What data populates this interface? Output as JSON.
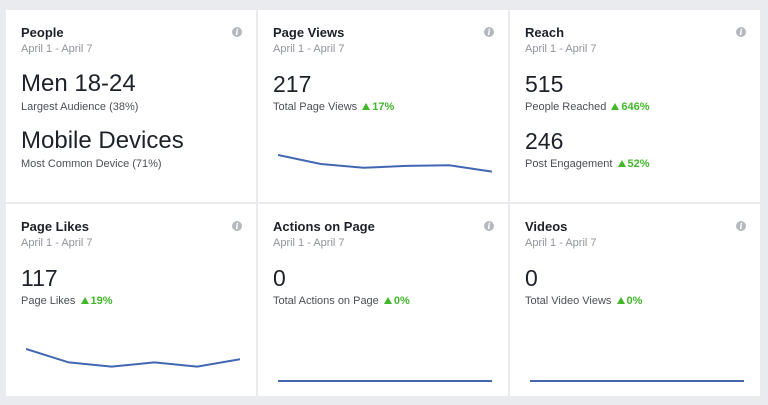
{
  "cards": [
    {
      "title": "People",
      "range": "April 1 - April 7",
      "metrics": [
        {
          "value": "Men 18-24",
          "label": "Largest Audience (38%)"
        },
        {
          "value": "Mobile Devices",
          "label": "Most Common Device (71%)"
        }
      ]
    },
    {
      "title": "Page Views",
      "range": "April 1 - April 7",
      "metrics": [
        {
          "value": "217",
          "label": "Total Page Views",
          "change": "17%"
        }
      ],
      "trend": [
        100,
        72,
        60,
        66,
        68,
        48
      ]
    },
    {
      "title": "Reach",
      "range": "April 1 - April 7",
      "metrics": [
        {
          "value": "515",
          "label": "People Reached",
          "change": "646%"
        },
        {
          "value": "246",
          "label": "Post Engagement",
          "change": "52%"
        }
      ]
    },
    {
      "title": "Page Likes",
      "range": "April 1 - April 7",
      "metrics": [
        {
          "value": "117",
          "label": "Page Likes",
          "change": "19%"
        }
      ],
      "trend": [
        100,
        58,
        45,
        58,
        45,
        68
      ]
    },
    {
      "title": "Actions on Page",
      "range": "April 1 - April 7",
      "metrics": [
        {
          "value": "0",
          "label": "Total Actions on Page",
          "change": "0%"
        }
      ],
      "trend": [
        0,
        0,
        0,
        0,
        0,
        0
      ]
    },
    {
      "title": "Videos",
      "range": "April 1 - April 7",
      "metrics": [
        {
          "value": "0",
          "label": "Total Video Views",
          "change": "0%"
        }
      ],
      "trend": [
        0,
        0,
        0,
        0,
        0,
        0
      ]
    }
  ],
  "colors": {
    "line": "#4267b2",
    "positive": "#42b72a"
  },
  "icons": {
    "info": "info-icon",
    "trend_up": "triangle-up-icon"
  }
}
